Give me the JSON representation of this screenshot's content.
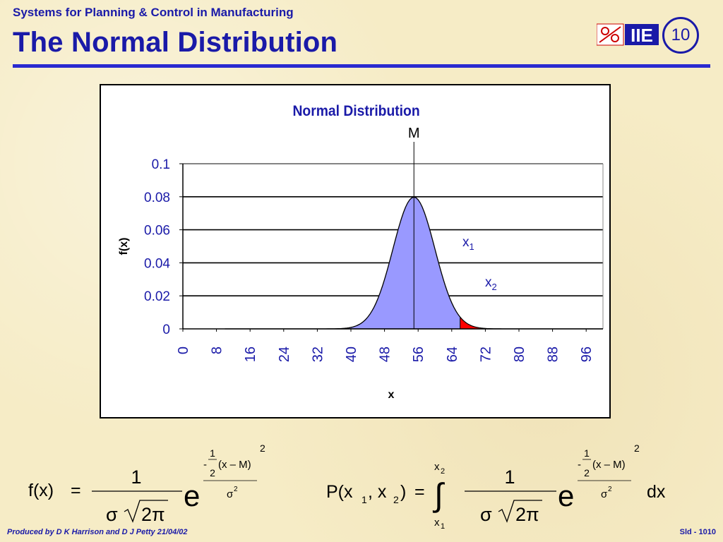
{
  "header": {
    "subtitle": "Systems for Planning & Control in Manufacturing",
    "title": "The Normal Distribution",
    "logo_text": "IIE",
    "slide_number": "10"
  },
  "footer": {
    "produced_by": "Produced by D K Harrison and D J Petty 21/04/02",
    "slide_id": "Sld - 1010"
  },
  "colors": {
    "title_blue": "#1a1aa8",
    "curve_fill": "#9999ff",
    "highlight_fill": "#ff0000"
  },
  "chart_data": {
    "type": "area",
    "title": "Normal Distribution",
    "xlabel": "x",
    "ylabel": "f(x)",
    "mean": 55,
    "sd": 5,
    "mean_label": "M",
    "x_ticks": [
      "0",
      "8",
      "16",
      "24",
      "32",
      "40",
      "48",
      "56",
      "64",
      "72",
      "80",
      "88",
      "96"
    ],
    "y_ticks": [
      "0",
      "0.02",
      "0.04",
      "0.06",
      "0.08",
      "0.1"
    ],
    "xlim": [
      0,
      100
    ],
    "ylim": [
      0,
      0.1
    ],
    "grid": true,
    "shaded_region": {
      "from": 66,
      "to": 71.5
    },
    "annotations": [
      {
        "label": "x",
        "subscript": "1"
      },
      {
        "label": "x",
        "subscript": "2"
      }
    ]
  },
  "formulas": {
    "pdf": {
      "lhs": "f(x)",
      "eq": "=",
      "numerator": "1",
      "denominator_sigma": "σ",
      "denominator_root": "2π",
      "base": "e",
      "exp_minus": "-",
      "exp_half_num": "1",
      "exp_half_den": "2",
      "exp_term": "(x – M)",
      "exp_power": "2",
      "exp_den": "σ",
      "exp_den_power": "2"
    },
    "prob": {
      "lhs_p": "P(x",
      "lhs_sub1": "1",
      "lhs_mid": ", x",
      "lhs_sub2": "2",
      "lhs_close": ")",
      "eq": "=",
      "upper_limit": "x",
      "upper_sub": "2",
      "lower_limit": "x",
      "lower_sub": "1",
      "integral": "∫",
      "numerator": "1",
      "denominator_sigma": "σ",
      "denominator_root": "2π",
      "base": "e",
      "exp_minus": "-",
      "exp_half_num": "1",
      "exp_half_den": "2",
      "exp_term": "(x – M)",
      "exp_power": "2",
      "exp_den": "σ",
      "exp_den_power": "2",
      "dx": "dx"
    }
  }
}
